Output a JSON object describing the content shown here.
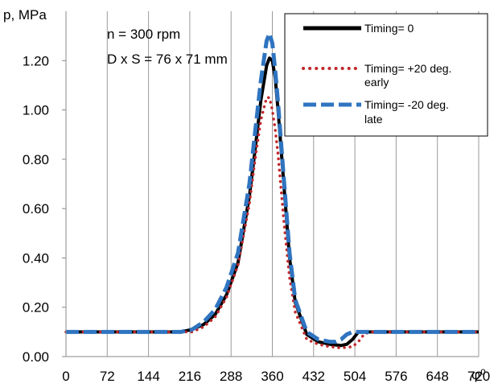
{
  "chart_data": {
    "type": "line",
    "ylabel": "p, MPa",
    "xlabel": "φ⁰",
    "xlim": [
      0,
      720
    ],
    "ylim": [
      0,
      1.3
    ],
    "x_ticks": [
      "0",
      "72",
      "144",
      "216",
      "288",
      "360",
      "432",
      "504",
      "576",
      "648",
      "720"
    ],
    "y_ticks": [
      "0.00",
      "0.20",
      "0.40",
      "0.60",
      "0.80",
      "1.00",
      "1.20"
    ],
    "grid": "vertical",
    "legend_position": "top-right",
    "annotations": [
      "n = 300 rpm",
      "D x S = 76 x 71 mm"
    ],
    "series": [
      {
        "name": "Timing= 0",
        "color": "#000000",
        "style": "solid",
        "x": [
          0,
          100,
          200,
          220,
          240,
          260,
          280,
          300,
          320,
          330,
          340,
          350,
          355,
          360,
          365,
          370,
          380,
          390,
          400,
          420,
          440,
          460,
          480,
          490,
          495,
          500,
          510,
          520,
          600,
          720
        ],
        "y": [
          0.1,
          0.1,
          0.1,
          0.11,
          0.13,
          0.17,
          0.25,
          0.38,
          0.65,
          0.84,
          1.04,
          1.18,
          1.21,
          1.2,
          1.13,
          1.0,
          0.7,
          0.4,
          0.22,
          0.09,
          0.06,
          0.05,
          0.045,
          0.05,
          0.06,
          0.07,
          0.1,
          0.1,
          0.1,
          0.1
        ]
      },
      {
        "name": "Timing= +20 deg. early",
        "color": "#c0282d",
        "style": "dotted",
        "x": [
          0,
          200,
          220,
          240,
          260,
          280,
          300,
          320,
          330,
          340,
          350,
          355,
          360,
          365,
          370,
          380,
          390,
          400,
          420,
          440,
          460,
          480,
          500,
          510,
          520,
          530,
          540,
          600,
          720
        ],
        "y": [
          0.1,
          0.1,
          0.1,
          0.12,
          0.16,
          0.24,
          0.37,
          0.62,
          0.8,
          0.96,
          1.05,
          1.05,
          1.0,
          0.92,
          0.82,
          0.55,
          0.32,
          0.18,
          0.07,
          0.05,
          0.04,
          0.035,
          0.04,
          0.06,
          0.09,
          0.1,
          0.1,
          0.1,
          0.1
        ]
      },
      {
        "name": "Timing= -20 deg. late",
        "color": "#2f74c0",
        "style": "dashed",
        "x": [
          0,
          200,
          220,
          240,
          260,
          280,
          300,
          320,
          330,
          340,
          350,
          355,
          360,
          365,
          370,
          380,
          390,
          400,
          420,
          440,
          460,
          470,
          480,
          490,
          500,
          520,
          600,
          720
        ],
        "y": [
          0.1,
          0.1,
          0.11,
          0.14,
          0.19,
          0.28,
          0.42,
          0.7,
          0.91,
          1.12,
          1.28,
          1.31,
          1.27,
          1.16,
          1.03,
          0.72,
          0.42,
          0.23,
          0.1,
          0.07,
          0.06,
          0.06,
          0.07,
          0.09,
          0.1,
          0.1,
          0.1,
          0.1
        ]
      }
    ]
  }
}
